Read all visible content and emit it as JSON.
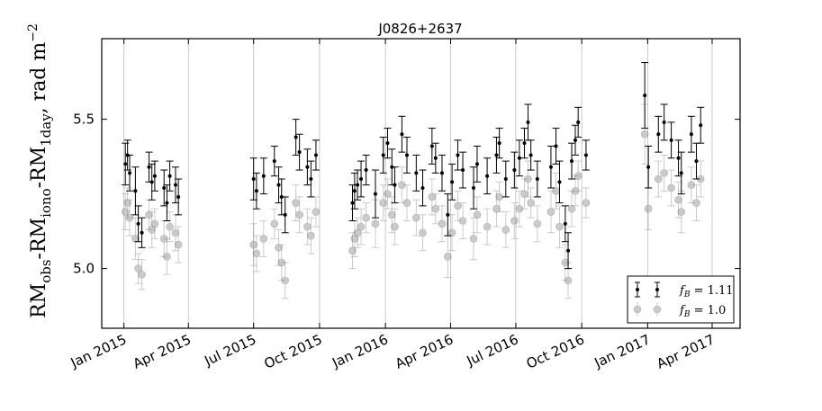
{
  "chart_data": {
    "type": "scatter",
    "title": "J0826+2637",
    "ylabel": "RM_obs-RM_iono-RM_1day, rad m^-2",
    "ylabel_parts": {
      "base": "RM",
      "s1": "obs",
      "s2": "iono",
      "s3": "1day",
      "units": ", rad m",
      "exp": "−2"
    },
    "ylabel_dash": "-",
    "xlabel": "",
    "ylim": [
      4.8,
      5.77
    ],
    "xlim": [
      "2014-12-01",
      "2017-05-10"
    ],
    "yticks": [
      5.0,
      5.5
    ],
    "ytick_labels": [
      "5.0",
      "5.5"
    ],
    "xticks": [
      "2015-01-01",
      "2015-04-01",
      "2015-07-01",
      "2015-10-01",
      "2016-01-01",
      "2016-04-01",
      "2016-07-01",
      "2016-10-01",
      "2017-01-01",
      "2017-04-01"
    ],
    "xtick_labels": [
      "Jan 2015",
      "Apr 2015",
      "Jul 2015",
      "Oct 2015",
      "Jan 2016",
      "Apr 2016",
      "Jul 2016",
      "Oct 2016",
      "Jan 2017",
      "Apr 2017"
    ],
    "grid": "vertical",
    "legend_position": "lower-right",
    "series": [
      {
        "name": "f_B = 1.11",
        "legend_label": "f",
        "legend_sub": "B",
        "legend_value": " = 1.11",
        "color": "#000000",
        "marker": "dot-errorbar",
        "points": [
          {
            "x": "2015-01-03",
            "y": 5.35,
            "err": 0.07
          },
          {
            "x": "2015-01-06",
            "y": 5.38,
            "err": 0.05
          },
          {
            "x": "2015-01-09",
            "y": 5.32,
            "err": 0.06
          },
          {
            "x": "2015-01-17",
            "y": 5.26,
            "err": 0.08
          },
          {
            "x": "2015-01-21",
            "y": 5.15,
            "err": 0.06
          },
          {
            "x": "2015-01-26",
            "y": 5.12,
            "err": 0.05
          },
          {
            "x": "2015-02-05",
            "y": 5.34,
            "err": 0.05
          },
          {
            "x": "2015-02-09",
            "y": 5.29,
            "err": 0.06
          },
          {
            "x": "2015-02-13",
            "y": 5.31,
            "err": 0.05
          },
          {
            "x": "2015-02-26",
            "y": 5.27,
            "err": 0.06
          },
          {
            "x": "2015-03-02",
            "y": 5.22,
            "err": 0.06
          },
          {
            "x": "2015-03-06",
            "y": 5.31,
            "err": 0.05
          },
          {
            "x": "2015-03-14",
            "y": 5.28,
            "err": 0.06
          },
          {
            "x": "2015-03-18",
            "y": 5.24,
            "err": 0.06
          },
          {
            "x": "2015-07-01",
            "y": 5.3,
            "err": 0.07
          },
          {
            "x": "2015-07-05",
            "y": 5.26,
            "err": 0.06
          },
          {
            "x": "2015-07-15",
            "y": 5.31,
            "err": 0.06
          },
          {
            "x": "2015-07-30",
            "y": 5.36,
            "err": 0.05
          },
          {
            "x": "2015-08-05",
            "y": 5.28,
            "err": 0.06
          },
          {
            "x": "2015-08-09",
            "y": 5.24,
            "err": 0.06
          },
          {
            "x": "2015-08-14",
            "y": 5.18,
            "err": 0.06
          },
          {
            "x": "2015-08-29",
            "y": 5.44,
            "err": 0.06
          },
          {
            "x": "2015-09-03",
            "y": 5.39,
            "err": 0.06
          },
          {
            "x": "2015-09-14",
            "y": 5.34,
            "err": 0.06
          },
          {
            "x": "2015-09-19",
            "y": 5.3,
            "err": 0.06
          },
          {
            "x": "2015-09-26",
            "y": 5.38,
            "err": 0.05
          },
          {
            "x": "2015-11-16",
            "y": 5.22,
            "err": 0.06
          },
          {
            "x": "2015-11-19",
            "y": 5.26,
            "err": 0.06
          },
          {
            "x": "2015-11-23",
            "y": 5.28,
            "err": 0.05
          },
          {
            "x": "2015-11-28",
            "y": 5.3,
            "err": 0.06
          },
          {
            "x": "2015-12-05",
            "y": 5.33,
            "err": 0.05
          },
          {
            "x": "2015-12-18",
            "y": 5.25,
            "err": 0.08
          },
          {
            "x": "2015-12-29",
            "y": 5.38,
            "err": 0.06
          },
          {
            "x": "2016-01-04",
            "y": 5.42,
            "err": 0.05
          },
          {
            "x": "2016-01-10",
            "y": 5.34,
            "err": 0.06
          },
          {
            "x": "2016-01-14",
            "y": 5.28,
            "err": 0.06
          },
          {
            "x": "2016-01-24",
            "y": 5.45,
            "err": 0.06
          },
          {
            "x": "2016-01-31",
            "y": 5.38,
            "err": 0.06
          },
          {
            "x": "2016-02-13",
            "y": 5.32,
            "err": 0.06
          },
          {
            "x": "2016-02-22",
            "y": 5.27,
            "err": 0.06
          },
          {
            "x": "2016-03-06",
            "y": 5.41,
            "err": 0.06
          },
          {
            "x": "2016-03-11",
            "y": 5.37,
            "err": 0.05
          },
          {
            "x": "2016-03-20",
            "y": 5.32,
            "err": 0.06
          },
          {
            "x": "2016-03-28",
            "y": 5.18,
            "err": 0.07
          },
          {
            "x": "2016-04-03",
            "y": 5.29,
            "err": 0.06
          },
          {
            "x": "2016-04-11",
            "y": 5.38,
            "err": 0.05
          },
          {
            "x": "2016-04-18",
            "y": 5.33,
            "err": 0.06
          },
          {
            "x": "2016-05-03",
            "y": 5.27,
            "err": 0.07
          },
          {
            "x": "2016-05-08",
            "y": 5.35,
            "err": 0.06
          },
          {
            "x": "2016-05-22",
            "y": 5.31,
            "err": 0.06
          },
          {
            "x": "2016-06-04",
            "y": 5.38,
            "err": 0.06
          },
          {
            "x": "2016-06-08",
            "y": 5.42,
            "err": 0.05
          },
          {
            "x": "2016-06-17",
            "y": 5.3,
            "err": 0.06
          },
          {
            "x": "2016-06-29",
            "y": 5.33,
            "err": 0.06
          },
          {
            "x": "2016-07-06",
            "y": 5.37,
            "err": 0.06
          },
          {
            "x": "2016-07-13",
            "y": 5.42,
            "err": 0.05
          },
          {
            "x": "2016-07-18",
            "y": 5.49,
            "err": 0.06
          },
          {
            "x": "2016-07-22",
            "y": 5.38,
            "err": 0.05
          },
          {
            "x": "2016-07-31",
            "y": 5.3,
            "err": 0.06
          },
          {
            "x": "2016-08-19",
            "y": 5.34,
            "err": 0.07
          },
          {
            "x": "2016-08-26",
            "y": 5.41,
            "err": 0.06
          },
          {
            "x": "2016-08-31",
            "y": 5.29,
            "err": 0.07
          },
          {
            "x": "2016-09-08",
            "y": 5.15,
            "err": 0.06
          },
          {
            "x": "2016-09-12",
            "y": 5.06,
            "err": 0.06
          },
          {
            "x": "2016-09-17",
            "y": 5.36,
            "err": 0.06
          },
          {
            "x": "2016-09-22",
            "y": 5.43,
            "err": 0.05
          },
          {
            "x": "2016-09-26",
            "y": 5.49,
            "err": 0.05
          },
          {
            "x": "2016-10-07",
            "y": 5.38,
            "err": 0.05
          },
          {
            "x": "2016-12-28",
            "y": 5.58,
            "err": 0.11
          },
          {
            "x": "2017-01-02",
            "y": 5.34,
            "err": 0.07
          },
          {
            "x": "2017-01-16",
            "y": 5.45,
            "err": 0.06
          },
          {
            "x": "2017-01-24",
            "y": 5.49,
            "err": 0.06
          },
          {
            "x": "2017-02-03",
            "y": 5.43,
            "err": 0.06
          },
          {
            "x": "2017-02-13",
            "y": 5.37,
            "err": 0.06
          },
          {
            "x": "2017-02-17",
            "y": 5.32,
            "err": 0.07
          },
          {
            "x": "2017-03-03",
            "y": 5.45,
            "err": 0.06
          },
          {
            "x": "2017-03-10",
            "y": 5.36,
            "err": 0.06
          },
          {
            "x": "2017-03-16",
            "y": 5.48,
            "err": 0.06
          }
        ]
      },
      {
        "name": "f_B = 1.0",
        "legend_label": "f",
        "legend_sub": "B",
        "legend_value": " = 1.0",
        "color": "#8c8c8c",
        "marker": "circle-errorbar",
        "points": [
          {
            "x": "2015-01-03",
            "y": 5.19,
            "err": 0.06
          },
          {
            "x": "2015-01-06",
            "y": 5.22,
            "err": 0.05
          },
          {
            "x": "2015-01-09",
            "y": 5.17,
            "err": 0.06
          },
          {
            "x": "2015-01-17",
            "y": 5.1,
            "err": 0.07
          },
          {
            "x": "2015-01-21",
            "y": 5.0,
            "err": 0.05
          },
          {
            "x": "2015-01-26",
            "y": 4.98,
            "err": 0.05
          },
          {
            "x": "2015-02-05",
            "y": 5.18,
            "err": 0.05
          },
          {
            "x": "2015-02-09",
            "y": 5.13,
            "err": 0.06
          },
          {
            "x": "2015-02-13",
            "y": 5.15,
            "err": 0.05
          },
          {
            "x": "2015-02-26",
            "y": 5.1,
            "err": 0.06
          },
          {
            "x": "2015-03-02",
            "y": 5.04,
            "err": 0.06
          },
          {
            "x": "2015-03-06",
            "y": 5.14,
            "err": 0.05
          },
          {
            "x": "2015-03-14",
            "y": 5.12,
            "err": 0.06
          },
          {
            "x": "2015-03-18",
            "y": 5.08,
            "err": 0.06
          },
          {
            "x": "2015-07-01",
            "y": 5.08,
            "err": 0.07
          },
          {
            "x": "2015-07-05",
            "y": 5.05,
            "err": 0.06
          },
          {
            "x": "2015-07-15",
            "y": 5.1,
            "err": 0.06
          },
          {
            "x": "2015-07-30",
            "y": 5.15,
            "err": 0.05
          },
          {
            "x": "2015-08-05",
            "y": 5.07,
            "err": 0.06
          },
          {
            "x": "2015-08-09",
            "y": 5.02,
            "err": 0.06
          },
          {
            "x": "2015-08-14",
            "y": 4.96,
            "err": 0.06
          },
          {
            "x": "2015-08-29",
            "y": 5.22,
            "err": 0.06
          },
          {
            "x": "2015-09-03",
            "y": 5.18,
            "err": 0.06
          },
          {
            "x": "2015-09-14",
            "y": 5.14,
            "err": 0.06
          },
          {
            "x": "2015-09-19",
            "y": 5.11,
            "err": 0.06
          },
          {
            "x": "2015-09-26",
            "y": 5.19,
            "err": 0.05
          },
          {
            "x": "2015-11-16",
            "y": 5.06,
            "err": 0.06
          },
          {
            "x": "2015-11-19",
            "y": 5.1,
            "err": 0.06
          },
          {
            "x": "2015-11-23",
            "y": 5.12,
            "err": 0.05
          },
          {
            "x": "2015-11-28",
            "y": 5.14,
            "err": 0.06
          },
          {
            "x": "2015-12-05",
            "y": 5.17,
            "err": 0.05
          },
          {
            "x": "2015-12-18",
            "y": 5.15,
            "err": 0.08
          },
          {
            "x": "2015-12-29",
            "y": 5.22,
            "err": 0.06
          },
          {
            "x": "2016-01-04",
            "y": 5.25,
            "err": 0.05
          },
          {
            "x": "2016-01-10",
            "y": 5.18,
            "err": 0.06
          },
          {
            "x": "2016-01-14",
            "y": 5.14,
            "err": 0.06
          },
          {
            "x": "2016-01-24",
            "y": 5.28,
            "err": 0.06
          },
          {
            "x": "2016-01-31",
            "y": 5.22,
            "err": 0.06
          },
          {
            "x": "2016-02-13",
            "y": 5.17,
            "err": 0.06
          },
          {
            "x": "2016-02-22",
            "y": 5.12,
            "err": 0.06
          },
          {
            "x": "2016-03-06",
            "y": 5.24,
            "err": 0.06
          },
          {
            "x": "2016-03-11",
            "y": 5.2,
            "err": 0.05
          },
          {
            "x": "2016-03-20",
            "y": 5.15,
            "err": 0.06
          },
          {
            "x": "2016-03-28",
            "y": 5.04,
            "err": 0.07
          },
          {
            "x": "2016-04-03",
            "y": 5.12,
            "err": 0.06
          },
          {
            "x": "2016-04-11",
            "y": 5.21,
            "err": 0.05
          },
          {
            "x": "2016-04-18",
            "y": 5.16,
            "err": 0.06
          },
          {
            "x": "2016-05-03",
            "y": 5.1,
            "err": 0.07
          },
          {
            "x": "2016-05-08",
            "y": 5.18,
            "err": 0.06
          },
          {
            "x": "2016-05-22",
            "y": 5.14,
            "err": 0.06
          },
          {
            "x": "2016-06-04",
            "y": 5.2,
            "err": 0.06
          },
          {
            "x": "2016-06-08",
            "y": 5.24,
            "err": 0.05
          },
          {
            "x": "2016-06-17",
            "y": 5.13,
            "err": 0.06
          },
          {
            "x": "2016-06-29",
            "y": 5.16,
            "err": 0.06
          },
          {
            "x": "2016-07-06",
            "y": 5.2,
            "err": 0.06
          },
          {
            "x": "2016-07-13",
            "y": 5.25,
            "err": 0.05
          },
          {
            "x": "2016-07-18",
            "y": 5.3,
            "err": 0.06
          },
          {
            "x": "2016-07-22",
            "y": 5.22,
            "err": 0.05
          },
          {
            "x": "2016-07-31",
            "y": 5.15,
            "err": 0.06
          },
          {
            "x": "2016-08-19",
            "y": 5.19,
            "err": 0.07
          },
          {
            "x": "2016-08-26",
            "y": 5.26,
            "err": 0.06
          },
          {
            "x": "2016-08-31",
            "y": 5.14,
            "err": 0.07
          },
          {
            "x": "2016-09-08",
            "y": 5.02,
            "err": 0.06
          },
          {
            "x": "2016-09-12",
            "y": 4.96,
            "err": 0.06
          },
          {
            "x": "2016-09-17",
            "y": 5.2,
            "err": 0.06
          },
          {
            "x": "2016-09-22",
            "y": 5.26,
            "err": 0.05
          },
          {
            "x": "2016-09-26",
            "y": 5.31,
            "err": 0.05
          },
          {
            "x": "2016-10-07",
            "y": 5.22,
            "err": 0.05
          },
          {
            "x": "2016-12-28",
            "y": 5.45,
            "err": 0.1
          },
          {
            "x": "2017-01-02",
            "y": 5.2,
            "err": 0.07
          },
          {
            "x": "2017-01-16",
            "y": 5.3,
            "err": 0.06
          },
          {
            "x": "2017-01-24",
            "y": 5.32,
            "err": 0.06
          },
          {
            "x": "2017-02-03",
            "y": 5.27,
            "err": 0.06
          },
          {
            "x": "2017-02-13",
            "y": 5.23,
            "err": 0.06
          },
          {
            "x": "2017-02-17",
            "y": 5.19,
            "err": 0.07
          },
          {
            "x": "2017-03-03",
            "y": 5.28,
            "err": 0.06
          },
          {
            "x": "2017-03-10",
            "y": 5.22,
            "err": 0.06
          },
          {
            "x": "2017-03-16",
            "y": 5.3,
            "err": 0.06
          }
        ]
      }
    ]
  }
}
